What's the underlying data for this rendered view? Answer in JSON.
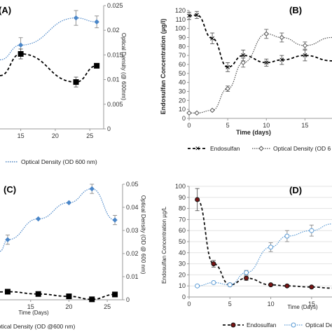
{
  "chart_data": [
    {
      "panel": "(A)",
      "type": "line",
      "x": [
        0,
        15,
        23,
        26
      ],
      "xticks": [
        "15",
        "20",
        "25"
      ],
      "xlim": [
        12,
        27
      ],
      "ylabel_right": "Optical Density (@ 600nm)",
      "y2ticks": [
        "0",
        "0.005",
        "0.01",
        "0.015",
        "0.02",
        "0.025"
      ],
      "y2lim": [
        0,
        0.025
      ],
      "series": [
        {
          "name": "Optical Density (OD 600 nm)",
          "axis": "right",
          "style": "dotted-blue",
          "x": [
            12,
            15,
            23,
            26
          ],
          "values": [
            0.014,
            0.017,
            0.0225,
            0.0217
          ],
          "err": [
            0,
            0.0015,
            0.0015,
            0.0012
          ]
        },
        {
          "name": "",
          "axis": "right",
          "style": "dashed-black",
          "x": [
            12,
            15,
            23,
            26
          ],
          "values": [
            0.0108,
            0.0152,
            0.0095,
            0.0128
          ],
          "err": [
            0,
            0.001,
            0.001,
            0
          ]
        }
      ],
      "legend": [
        "Optical Density (OD 600 nm)"
      ]
    },
    {
      "panel": "(B)",
      "type": "line",
      "xlabel": "Time (days)",
      "ylabel": "Endosulfan Concentration (µg/l)",
      "xticks": [
        "0",
        "5",
        "10",
        "15"
      ],
      "xlim": [
        0,
        18.5
      ],
      "yticks": [
        "0",
        "10",
        "20",
        "30",
        "40",
        "50",
        "60",
        "70",
        "80",
        "90",
        "100",
        "110",
        "120"
      ],
      "ylim": [
        0,
        120
      ],
      "series": [
        {
          "name": "Endosulfan",
          "style": "dashed-black",
          "x": [
            0,
            1,
            3,
            5,
            7,
            10,
            12,
            15,
            18.5
          ],
          "values": [
            114,
            115,
            89,
            57,
            70,
            62,
            65,
            70,
            64
          ],
          "err": [
            4,
            4,
            6,
            5,
            6,
            4,
            5,
            6,
            0
          ]
        },
        {
          "name": "Optical Density (OD 6",
          "style": "dotted-diamond",
          "x": [
            0,
            1,
            3,
            5,
            7,
            10,
            12,
            15,
            18.5
          ],
          "values": [
            6,
            6,
            9,
            33,
            62,
            94,
            90,
            81,
            90
          ],
          "err": [
            0,
            0,
            0,
            3,
            5,
            5,
            5,
            4,
            0
          ]
        }
      ],
      "legend": [
        "Endosulfan",
        "Optical Density (OD 6"
      ]
    },
    {
      "panel": "(C)",
      "type": "line",
      "xlabel": "Time (Days)",
      "ylabel_right": "Optical Density (OD @ 600 nm)",
      "xticks": [
        "15",
        "20",
        "25"
      ],
      "xlim": [
        11,
        27
      ],
      "y2ticks": [
        "0",
        "0.01",
        "0.02",
        "0.03",
        "0.04",
        "0.05"
      ],
      "y2lim": [
        0,
        0.05
      ],
      "series": [
        {
          "name": "Optical Density (OD @600 nm)",
          "axis": "right",
          "style": "dotted-blue",
          "x": [
            11,
            12,
            16,
            20,
            23,
            26
          ],
          "values": [
            0.021,
            0.026,
            0.035,
            0.042,
            0.048,
            0.0345
          ],
          "err": [
            0,
            0.002,
            0,
            0,
            0.002,
            0.002
          ]
        },
        {
          "name": "",
          "axis": "right",
          "style": "dashed-black",
          "x": [
            11,
            12,
            16,
            20,
            23,
            26
          ],
          "values": [
            0.0034,
            0.0035,
            0.0025,
            0.0015,
            0.0002,
            0.0023
          ],
          "err": [
            0,
            0,
            0,
            0,
            0,
            0
          ]
        }
      ],
      "legend": [
        "Optical Density (OD @600 nm)"
      ]
    },
    {
      "panel": "(D)",
      "type": "line",
      "xlabel": "Time (Days)",
      "ylabel": "Endosulfan Concentration µg/L",
      "xticks": [
        "0",
        "5",
        "10",
        "15"
      ],
      "xlim": [
        0,
        17.5
      ],
      "yticks": [
        "0",
        "10",
        "20",
        "30",
        "40",
        "50",
        "60",
        "70",
        "80",
        "90",
        "100"
      ],
      "ylim": [
        0,
        100
      ],
      "series": [
        {
          "name": "Endosulfan",
          "style": "dashed-dark-red",
          "x": [
            1,
            3,
            5,
            7,
            10,
            12,
            15,
            17.5
          ],
          "values": [
            88,
            30,
            11,
            17,
            11,
            10,
            9,
            8
          ],
          "err": [
            10,
            3,
            0,
            2,
            0,
            0,
            0,
            0
          ]
        },
        {
          "name": "Optical De",
          "style": "dotted-blue-circle",
          "x": [
            1,
            3,
            5,
            7,
            10,
            12,
            15,
            17.5
          ],
          "values": [
            10,
            13,
            11,
            22,
            45,
            55,
            60,
            66
          ],
          "err": [
            0,
            0,
            0,
            2,
            4,
            5,
            5,
            0
          ]
        }
      ],
      "legend": [
        "Endosulfan",
        "Optical De"
      ]
    }
  ]
}
